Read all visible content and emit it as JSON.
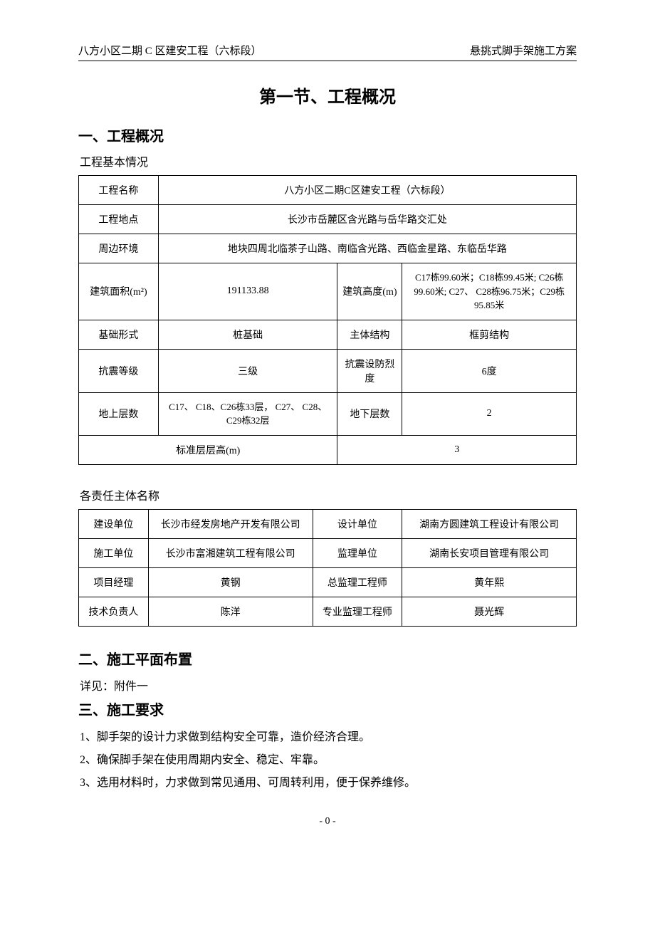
{
  "header": {
    "left": "八方小区二期 C 区建安工程（六标段）",
    "right": "悬挑式脚手架施工方案"
  },
  "mainTitle": "第一节、工程概况",
  "sec1": {
    "title": "一、工程概况",
    "intro": "工程基本情况"
  },
  "table1": {
    "r1": {
      "label": "工程名称",
      "value": "八方小区二期C区建安工程（六标段）"
    },
    "r2": {
      "label": "工程地点",
      "value": "长沙市岳麓区含光路与岳华路交汇处"
    },
    "r3": {
      "label": "周边环境",
      "value": "地块四周北临茶子山路、南临含光路、西临金星路、东临岳华路"
    },
    "r4": {
      "label1": "建筑面积(m²)",
      "val1": "191133.88",
      "label2": "建筑高度(m)",
      "val2": "C17栋99.60米；C18栋99.45米; C26栋99.60米; C27、 C28栋96.75米；C29栋95.85米"
    },
    "r5": {
      "label1": "基础形式",
      "val1": "桩基础",
      "label2": "主体结构",
      "val2": "框剪结构"
    },
    "r6": {
      "label1": "抗震等级",
      "val1": "三级",
      "label2": "抗震设防烈度",
      "val2": "6度"
    },
    "r7": {
      "label1": "地上层数",
      "val1": "C17、 C18、C26栋33层， C27、 C28、C29栋32层",
      "label2": "地下层数",
      "val2": "2"
    },
    "r8": {
      "label": "标准层层高(m)",
      "value": "3"
    }
  },
  "table2Intro": "各责任主体名称",
  "table2": {
    "r1": {
      "l1": "建设单位",
      "v1": "长沙市经发房地产开发有限公司",
      "l2": "设计单位",
      "v2": "湖南方圆建筑工程设计有限公司"
    },
    "r2": {
      "l1": "施工单位",
      "v1": "长沙市富湘建筑工程有限公司",
      "l2": "监理单位",
      "v2": "湖南长安项目管理有限公司"
    },
    "r3": {
      "l1": "项目经理",
      "v1": "黄钢",
      "l2": "总监理工程师",
      "v2": "黄年熙"
    },
    "r4": {
      "l1": "技术负责人",
      "v1": "陈洋",
      "l2": "专业监理工程师",
      "v2": "聂光辉"
    }
  },
  "sec2": {
    "title": "二、施工平面布置",
    "body": "详见：附件一"
  },
  "sec3": {
    "title": "三、施工要求",
    "p1": "1、脚手架的设计力求做到结构安全可靠，造价经济合理。",
    "p2": "2、确保脚手架在使用周期内安全、稳定、牢靠。",
    "p3": "3、选用材料时，力求做到常见通用、可周转利用，便于保养维修。"
  },
  "pageNumber": "- 0 -"
}
